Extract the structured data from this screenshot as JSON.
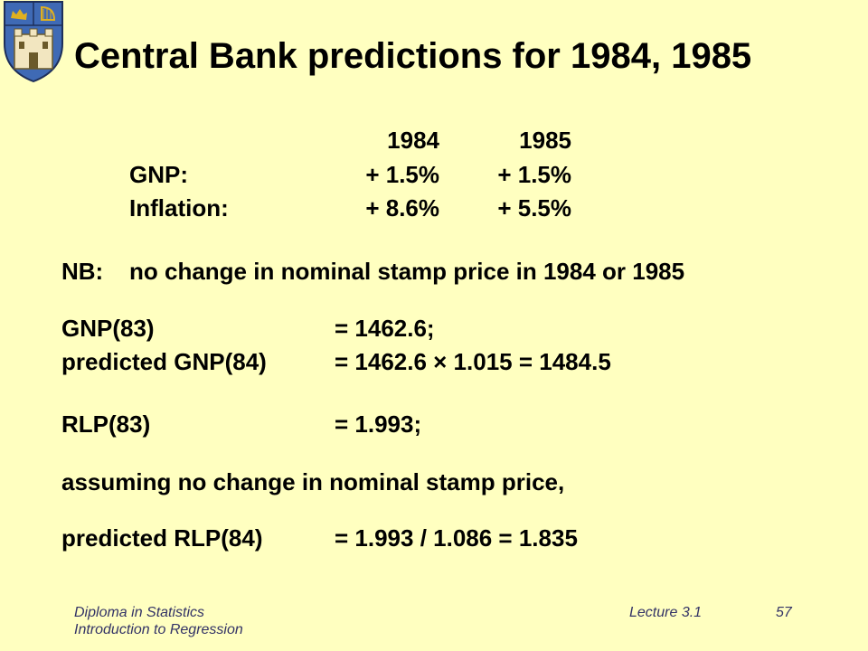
{
  "title": "Central Bank predictions for 1984, 1985",
  "table": {
    "col1": "1984",
    "col2": "1985",
    "rows": [
      {
        "label": "GNP:",
        "v1984": "+ 1.5%",
        "v1985": "+ 1.5%"
      },
      {
        "label": "Inflation:",
        "v1984": "+ 8.6%",
        "v1985": "+ 5.5%"
      }
    ]
  },
  "nb": {
    "label": "NB:",
    "text": "no change in nominal stamp price in 1984 or 1985"
  },
  "lines": {
    "gnp83_label": "GNP(83)",
    "gnp83_value": "= 1462.6;",
    "gnp84_label": "predicted GNP(84)",
    "gnp84_value": "= 1462.6 × 1.015 = 1484.5",
    "rlp83_label": "RLP(83)",
    "rlp83_value": "= 1.993;",
    "assumption": "assuming no change in nominal stamp price,",
    "rlp84_label": "predicted RLP(84)",
    "rlp84_value": "= 1.993 / 1.086 = 1.835"
  },
  "footer": {
    "course_line1": "Diploma in Statistics",
    "course_line2": "Introduction to Regression",
    "lecture": "Lecture 3.1",
    "page": "57"
  },
  "crest": {
    "blue": "#3f6ab5",
    "gold": "#e0b020"
  }
}
